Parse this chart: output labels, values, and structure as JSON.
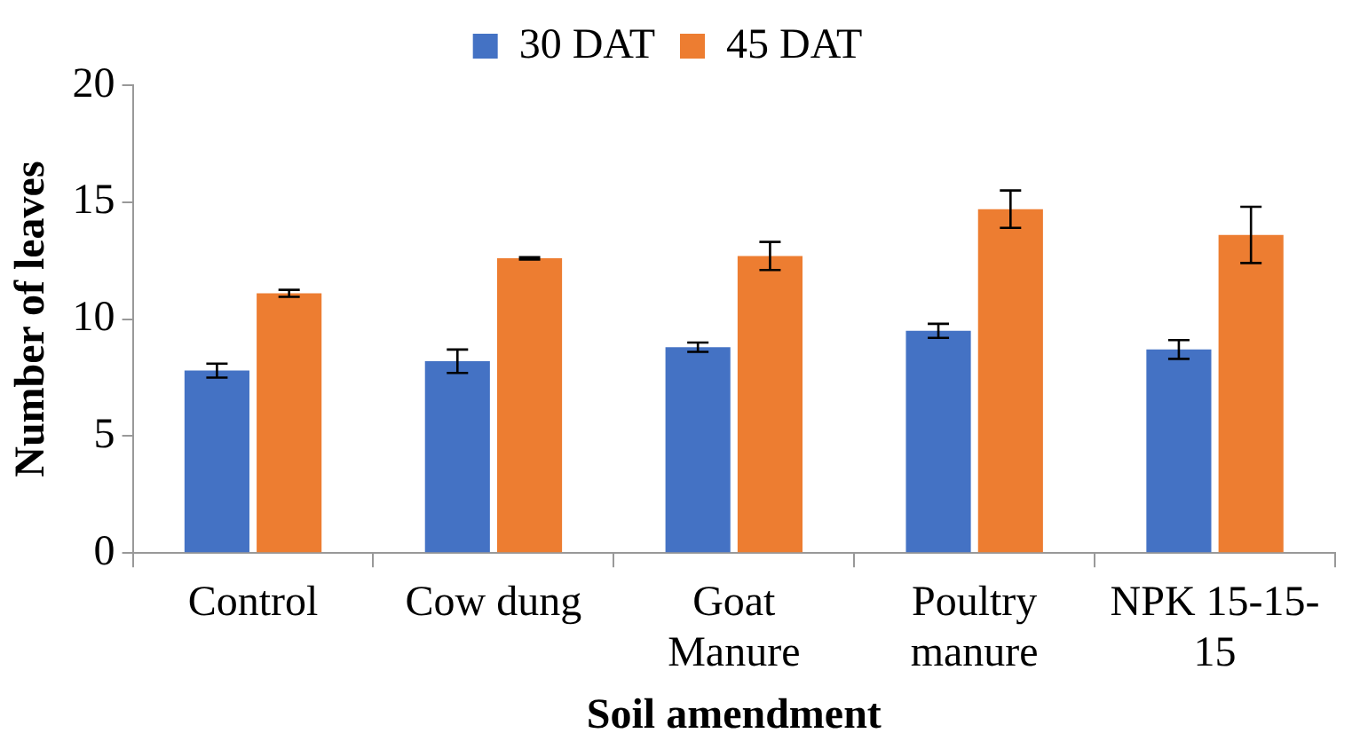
{
  "chart_data": {
    "type": "bar",
    "xlabel": "Soil amendment",
    "ylabel": "Number of leaves",
    "categories": [
      "Control",
      "Cow dung",
      "Goat Manure",
      "Poultry manure",
      "NPK 15-15-15"
    ],
    "series": [
      {
        "name": "30 DAT",
        "color": "#4472c4",
        "values": [
          7.8,
          8.2,
          8.8,
          9.5,
          8.7
        ],
        "errors": [
          0.3,
          0.5,
          0.2,
          0.3,
          0.4
        ]
      },
      {
        "name": "45 DAT",
        "color": "#ed7d31",
        "values": [
          11.1,
          12.6,
          12.7,
          14.7,
          13.6
        ],
        "errors": [
          0.15,
          0.05,
          0.6,
          0.8,
          1.2
        ]
      }
    ],
    "ylim": [
      0,
      20
    ],
    "yticks": [
      0,
      5,
      10,
      15,
      20
    ],
    "grid": false,
    "legend": "top"
  }
}
